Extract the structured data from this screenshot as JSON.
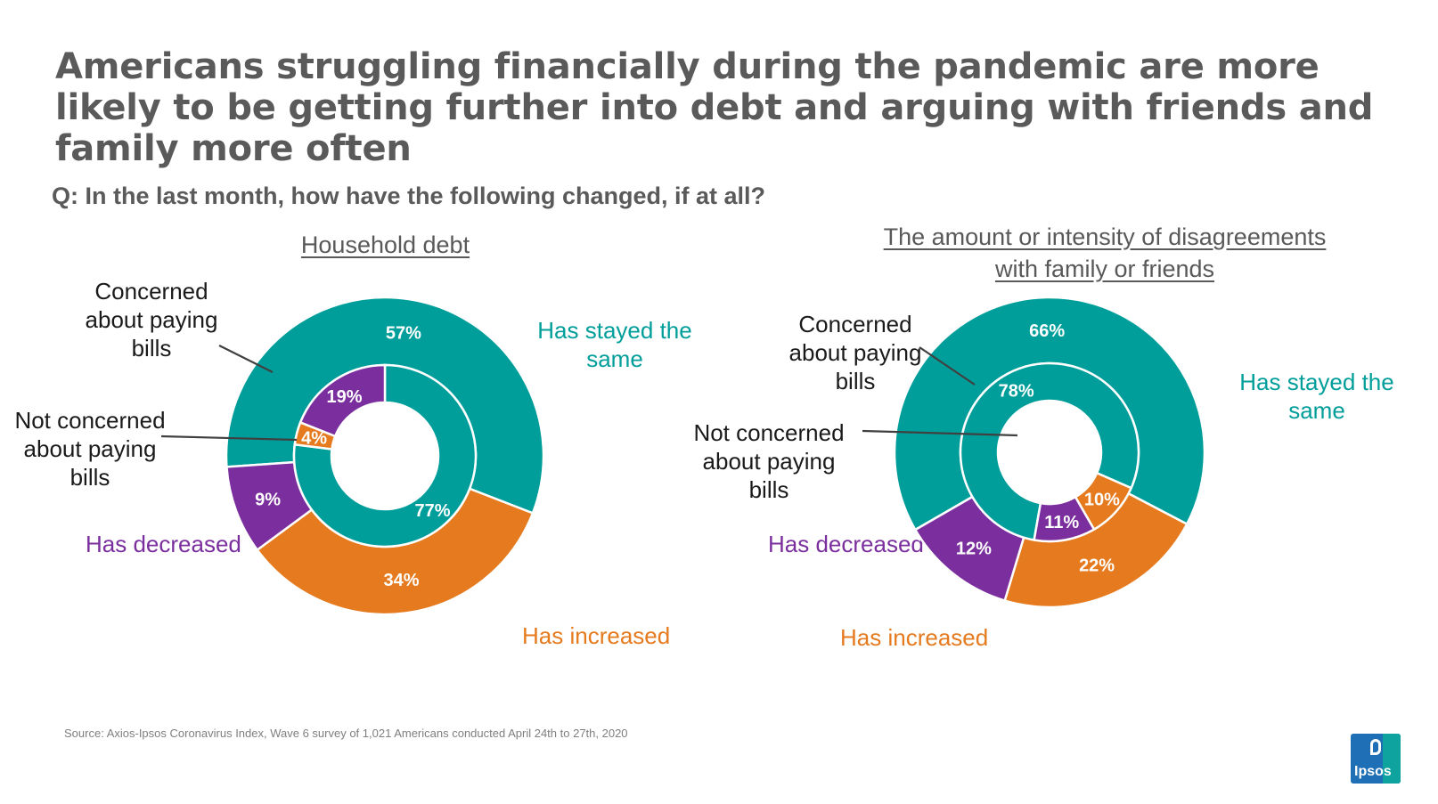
{
  "title": "Americans struggling financially during the pandemic are more likely to be getting further into debt and arguing with friends and family more often",
  "question": "Q: In the last month, how  have the following changed, if at all?",
  "colors": {
    "stayed": "#009e9a",
    "decreased": "#7b2f9e",
    "increased": "#e57a1e",
    "text": "#5a5a5a"
  },
  "chart_data": [
    {
      "type": "pie",
      "subtype": "nested-donut",
      "title": "Household debt",
      "categories": [
        "Has stayed the same",
        "Has increased",
        "Has decreased"
      ],
      "series": [
        {
          "name": "Concerned about paying bills",
          "ring": "outer",
          "values": [
            57,
            34,
            9
          ],
          "labels": [
            "57%",
            "34%",
            "9%"
          ]
        },
        {
          "name": "Not concerned about paying bills",
          "ring": "inner",
          "values": [
            77,
            4,
            19
          ],
          "labels": [
            "77%",
            "4%",
            "19%"
          ]
        }
      ],
      "annotations": {
        "concerned": "Concerned about paying bills",
        "not_concerned": "Not concerned about paying bills"
      },
      "legend": {
        "stayed": "Has stayed the same",
        "increased": "Has increased",
        "decreased": "Has decreased"
      }
    },
    {
      "type": "pie",
      "subtype": "nested-donut",
      "title": "The amount or intensity of disagreements with family or friends",
      "categories": [
        "Has stayed the same",
        "Has increased",
        "Has decreased"
      ],
      "series": [
        {
          "name": "Concerned about paying bills",
          "ring": "outer",
          "values": [
            66,
            22,
            12
          ],
          "labels": [
            "66%",
            "22%",
            "12%"
          ]
        },
        {
          "name": "Not concerned about paying bills",
          "ring": "inner",
          "values": [
            78,
            10,
            11
          ],
          "labels": [
            "78%",
            "10%",
            "11%"
          ]
        }
      ],
      "annotations": {
        "concerned": "Concerned about paying bills",
        "not_concerned": "Not concerned about paying bills"
      },
      "legend": {
        "stayed": "Has stayed the same",
        "increased": "Has increased",
        "decreased": "Has decreased"
      }
    }
  ],
  "source": "Source: Axios-Ipsos Coronavirus Index, Wave 6 survey of 1,021 Americans conducted April 24th to 27th, 2020",
  "logo_text": "Ipsos"
}
